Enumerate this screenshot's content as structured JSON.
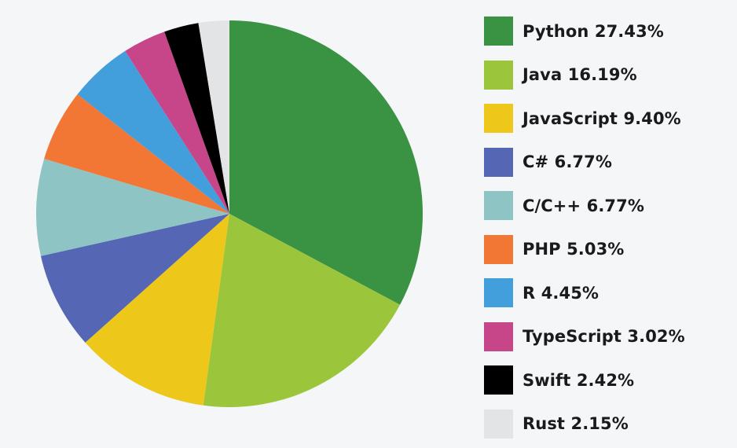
{
  "chart_data": {
    "type": "pie",
    "legend_position": "right",
    "start_angle_deg": 0,
    "direction": "clockwise",
    "slices": [
      {
        "label": "Python",
        "value": 27.43,
        "display": "27.43%",
        "color": "#3a9243"
      },
      {
        "label": "Java",
        "value": 16.19,
        "display": "16.19%",
        "color": "#9bc63b"
      },
      {
        "label": "JavaScript",
        "value": 9.4,
        "display": "9.40%",
        "color": "#edc719"
      },
      {
        "label": "C#",
        "value": 6.77,
        "display": "6.77%",
        "color": "#5566b5"
      },
      {
        "label": "C/C++",
        "value": 6.77,
        "display": "6.77%",
        "color": "#8ec5c4"
      },
      {
        "label": "PHP",
        "value": 5.03,
        "display": "5.03%",
        "color": "#f27634"
      },
      {
        "label": "R",
        "value": 4.45,
        "display": "4.45%",
        "color": "#429fdc"
      },
      {
        "label": "TypeScript",
        "value": 3.02,
        "display": "3.02%",
        "color": "#c74589"
      },
      {
        "label": "Swift",
        "value": 2.42,
        "display": "2.42%",
        "color": "#000000"
      },
      {
        "label": "Rust",
        "value": 2.15,
        "display": "2.15%",
        "color": "#e3e4e6"
      }
    ]
  }
}
